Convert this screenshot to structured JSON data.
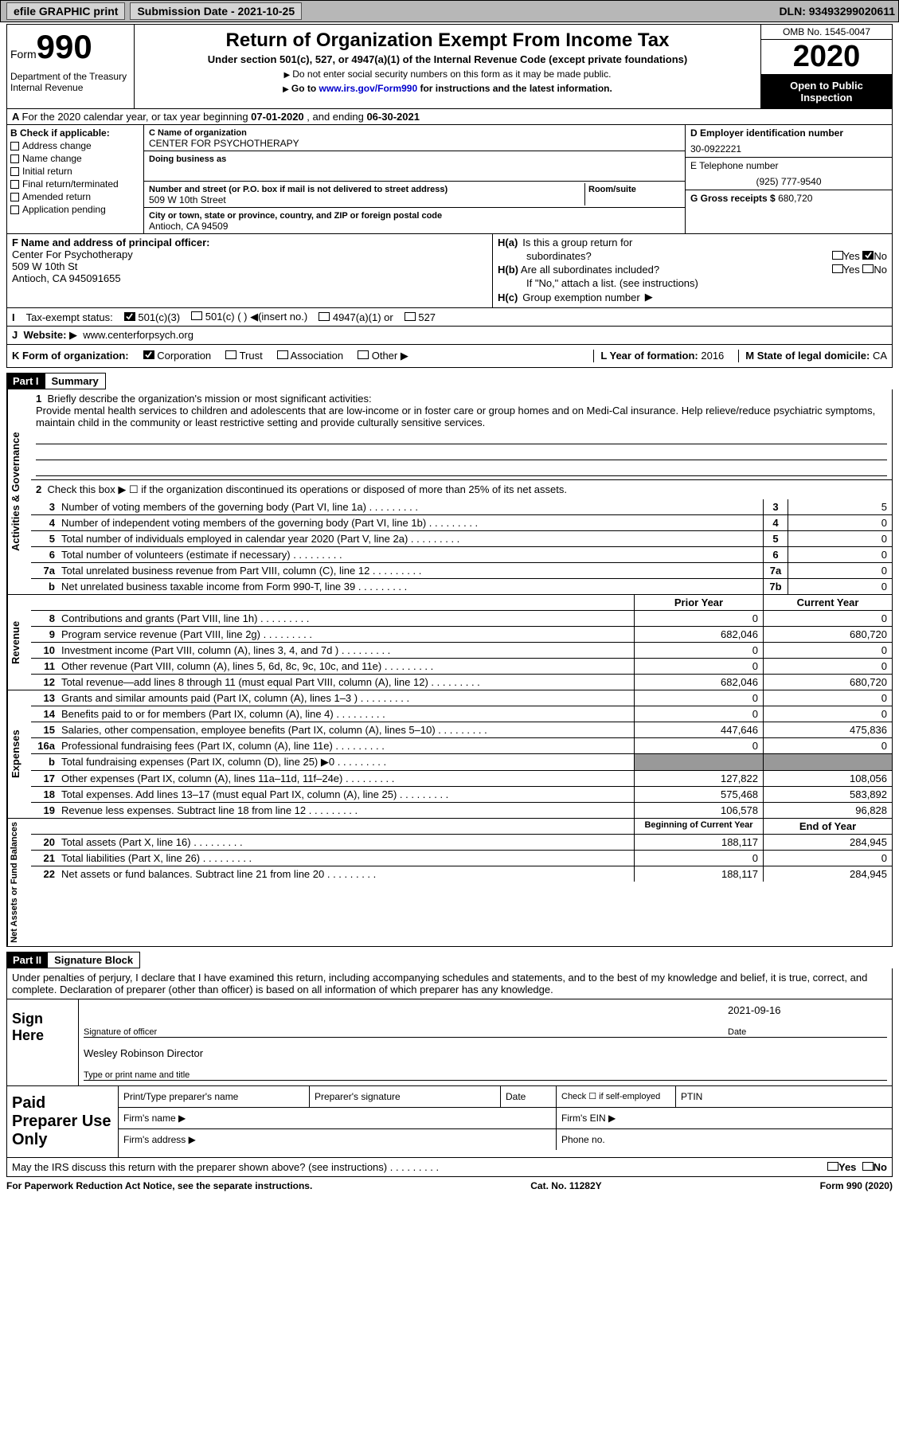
{
  "topbar": {
    "efile": "efile GRAPHIC print",
    "submission_label": "Submission Date - 2021-10-25",
    "dln_label": "DLN: 93493299020611"
  },
  "header": {
    "form_label": "Form",
    "form_number": "990",
    "dept": "Department of the Treasury\nInternal Revenue",
    "title": "Return of Organization Exempt From Income Tax",
    "subtitle": "Under section 501(c), 527, or 4947(a)(1) of the Internal Revenue Code (except private foundations)",
    "note1": "Do not enter social security numbers on this form as it may be made public.",
    "note2_pre": "Go to ",
    "note2_link": "www.irs.gov/Form990",
    "note2_post": " for instructions and the latest information.",
    "omb": "OMB No. 1545-0047",
    "year": "2020",
    "open": "Open to Public Inspection"
  },
  "lineA": {
    "pre": "For the 2020 calendar year, or tax year beginning ",
    "begin": "07-01-2020",
    "mid": " , and ending ",
    "end": "06-30-2021"
  },
  "B": {
    "title": "Check if applicable:",
    "items": [
      "Address change",
      "Name change",
      "Initial return",
      "Final return/terminated",
      "Amended return",
      "Application pending"
    ]
  },
  "C": {
    "name_lab": "C Name of organization",
    "name": "CENTER FOR PSYCHOTHERAPY",
    "dba_lab": "Doing business as",
    "street_lab": "Number and street (or P.O. box if mail is not delivered to street address)",
    "room_lab": "Room/suite",
    "street": "509 W 10th Street",
    "city_lab": "City or town, state or province, country, and ZIP or foreign postal code",
    "city": "Antioch, CA  94509"
  },
  "D": {
    "ein_lab": "D Employer identification number",
    "ein": "30-0922221",
    "phone_lab": "E Telephone number",
    "phone": "(925) 777-9540",
    "gross_lab": "G Gross receipts $",
    "gross": "680,720"
  },
  "F": {
    "lab": "F  Name and address of principal officer:",
    "l1": "Center For Psychotherapy",
    "l2": "509 W 10th St",
    "l3": "Antioch, CA  945091655"
  },
  "H": {
    "a": "Is this a group return for",
    "a2": "subordinates?",
    "b": "Are all subordinates included?",
    "bnote": "If \"No,\" attach a list. (see instructions)",
    "c": "Group exemption number",
    "yes": "Yes",
    "no": "No",
    "ha": "H(a)",
    "hb": "H(b)",
    "hc": "H(c)"
  },
  "I": {
    "lab": "Tax-exempt status:",
    "o1": "501(c)(3)",
    "o2": "501(c) (  )",
    "o2b": "(insert no.)",
    "o3": "4947(a)(1) or",
    "o4": "527"
  },
  "J": {
    "lab": "Website:",
    "val": "www.centerforpsych.org"
  },
  "Jright": {
    "L_lab": "L Year of formation:",
    "L_val": "2016",
    "M_lab": "M State of legal domicile:",
    "M_val": "CA"
  },
  "K": {
    "lab": "K Form of organization:",
    "o1": "Corporation",
    "o2": "Trust",
    "o3": "Association",
    "o4": "Other"
  },
  "partI": {
    "num": "Part I",
    "title": "Summary"
  },
  "mission": {
    "num": "1",
    "lab": "Briefly describe the organization's mission or most significant activities:",
    "text": "Provide mental health services to children and adolescents that are low-income or in foster care or group homes and on Medi-Cal insurance. Help relieve/reduce psychiatric symptoms, maintain child in the community or least restrictive setting and provide culturally sensitive services."
  },
  "gov": {
    "vlab": "Activities & Governance",
    "line2": "Check this box ▶ ☐  if the organization discontinued its operations or disposed of more than 25% of its net assets.",
    "rows": [
      {
        "n": "3",
        "d": "Number of voting members of the governing body (Part VI, line 1a)",
        "ln": "3",
        "v": "5"
      },
      {
        "n": "4",
        "d": "Number of independent voting members of the governing body (Part VI, line 1b)",
        "ln": "4",
        "v": "0"
      },
      {
        "n": "5",
        "d": "Total number of individuals employed in calendar year 2020 (Part V, line 2a)",
        "ln": "5",
        "v": "0"
      },
      {
        "n": "6",
        "d": "Total number of volunteers (estimate if necessary)",
        "ln": "6",
        "v": "0"
      },
      {
        "n": "7a",
        "d": "Total unrelated business revenue from Part VIII, column (C), line 12",
        "ln": "7a",
        "v": "0"
      },
      {
        "n": "b",
        "d": "Net unrelated business taxable income from Form 990-T, line 39",
        "ln": "7b",
        "v": "0"
      }
    ]
  },
  "rev": {
    "vlab": "Revenue",
    "h_prior": "Prior Year",
    "h_curr": "Current Year",
    "rows": [
      {
        "n": "8",
        "d": "Contributions and grants (Part VIII, line 1h)",
        "p": "0",
        "c": "0"
      },
      {
        "n": "9",
        "d": "Program service revenue (Part VIII, line 2g)",
        "p": "682,046",
        "c": "680,720"
      },
      {
        "n": "10",
        "d": "Investment income (Part VIII, column (A), lines 3, 4, and 7d )",
        "p": "0",
        "c": "0"
      },
      {
        "n": "11",
        "d": "Other revenue (Part VIII, column (A), lines 5, 6d, 8c, 9c, 10c, and 11e)",
        "p": "0",
        "c": "0"
      },
      {
        "n": "12",
        "d": "Total revenue—add lines 8 through 11 (must equal Part VIII, column (A), line 12)",
        "p": "682,046",
        "c": "680,720"
      }
    ]
  },
  "exp": {
    "vlab": "Expenses",
    "rows": [
      {
        "n": "13",
        "d": "Grants and similar amounts paid (Part IX, column (A), lines 1–3 )",
        "p": "0",
        "c": "0"
      },
      {
        "n": "14",
        "d": "Benefits paid to or for members (Part IX, column (A), line 4)",
        "p": "0",
        "c": "0"
      },
      {
        "n": "15",
        "d": "Salaries, other compensation, employee benefits (Part IX, column (A), lines 5–10)",
        "p": "447,646",
        "c": "475,836"
      },
      {
        "n": "16a",
        "d": "Professional fundraising fees (Part IX, column (A), line 11e)",
        "p": "0",
        "c": "0"
      },
      {
        "n": "b",
        "d": "Total fundraising expenses (Part IX, column (D), line 25) ▶0",
        "p": "",
        "c": "",
        "gray": true
      },
      {
        "n": "17",
        "d": "Other expenses (Part IX, column (A), lines 11a–11d, 11f–24e)",
        "p": "127,822",
        "c": "108,056"
      },
      {
        "n": "18",
        "d": "Total expenses. Add lines 13–17 (must equal Part IX, column (A), line 25)",
        "p": "575,468",
        "c": "583,892"
      },
      {
        "n": "19",
        "d": "Revenue less expenses. Subtract line 18 from line 12",
        "p": "106,578",
        "c": "96,828"
      }
    ]
  },
  "net": {
    "vlab": "Net Assets or Fund Balances",
    "h_begin": "Beginning of Current Year",
    "h_end": "End of Year",
    "rows": [
      {
        "n": "20",
        "d": "Total assets (Part X, line 16)",
        "p": "188,117",
        "c": "284,945"
      },
      {
        "n": "21",
        "d": "Total liabilities (Part X, line 26)",
        "p": "0",
        "c": "0"
      },
      {
        "n": "22",
        "d": "Net assets or fund balances. Subtract line 21 from line 20",
        "p": "188,117",
        "c": "284,945"
      }
    ]
  },
  "partII": {
    "num": "Part II",
    "title": "Signature Block"
  },
  "sig": {
    "decl": "Under penalties of perjury, I declare that I have examined this return, including accompanying schedules and statements, and to the best of my knowledge and belief, it is true, correct, and complete. Declaration of preparer (other than officer) is based on all information of which preparer has any knowledge.",
    "sign_here": "Sign Here",
    "sig_lab": "Signature of officer",
    "date": "2021-09-16",
    "date_lab": "Date",
    "name": "Wesley Robinson  Director",
    "name_lab": "Type or print name and title"
  },
  "prep": {
    "title": "Paid Preparer Use Only",
    "h1": "Print/Type preparer's name",
    "h2": "Preparer's signature",
    "h3": "Date",
    "h4": "Check ☐ if self-employed",
    "h5": "PTIN",
    "firm_name": "Firm's name  ▶",
    "firm_ein": "Firm's EIN ▶",
    "firm_addr": "Firm's address ▶",
    "phone": "Phone no."
  },
  "bottom": {
    "q": "May the IRS discuss this return with the preparer shown above? (see instructions)",
    "yes": "Yes",
    "no": "No"
  },
  "footer": {
    "l": "For Paperwork Reduction Act Notice, see the separate instructions.",
    "m": "Cat. No. 11282Y",
    "r": "Form 990 (2020)"
  }
}
